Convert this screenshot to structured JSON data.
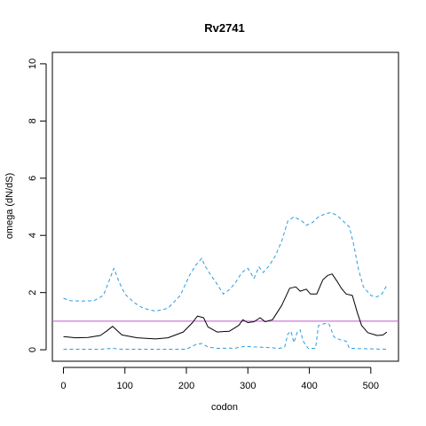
{
  "chart_data": {
    "type": "line",
    "title": "Rv2741",
    "xlabel": "codon",
    "ylabel": "omega (dN/dS)",
    "xlim": [
      -18,
      545
    ],
    "ylim": [
      -0.4,
      10.4
    ],
    "x_ticks": [
      0,
      100,
      200,
      300,
      400,
      500
    ],
    "y_ticks": [
      0,
      2,
      4,
      6,
      8,
      10
    ],
    "grid": false,
    "reference_line": {
      "y": 1,
      "color": "#c05bd0"
    },
    "colors": {
      "median": "#000000",
      "interval": "#2b9be0"
    },
    "series": [
      {
        "style": "solid",
        "color": "#000000",
        "points": [
          [
            0,
            0.46
          ],
          [
            20,
            0.42
          ],
          [
            40,
            0.43
          ],
          [
            60,
            0.5
          ],
          [
            70,
            0.65
          ],
          [
            80,
            0.82
          ],
          [
            85,
            0.72
          ],
          [
            95,
            0.52
          ],
          [
            120,
            0.42
          ],
          [
            150,
            0.38
          ],
          [
            170,
            0.42
          ],
          [
            195,
            0.62
          ],
          [
            210,
            0.95
          ],
          [
            218,
            1.18
          ],
          [
            228,
            1.12
          ],
          [
            235,
            0.8
          ],
          [
            250,
            0.62
          ],
          [
            270,
            0.65
          ],
          [
            285,
            0.85
          ],
          [
            292,
            1.05
          ],
          [
            300,
            0.95
          ],
          [
            310,
            0.98
          ],
          [
            320,
            1.12
          ],
          [
            328,
            0.98
          ],
          [
            340,
            1.05
          ],
          [
            355,
            1.55
          ],
          [
            368,
            2.15
          ],
          [
            378,
            2.2
          ],
          [
            385,
            2.05
          ],
          [
            395,
            2.12
          ],
          [
            402,
            1.95
          ],
          [
            412,
            1.95
          ],
          [
            422,
            2.45
          ],
          [
            430,
            2.6
          ],
          [
            437,
            2.65
          ],
          [
            445,
            2.4
          ],
          [
            452,
            2.15
          ],
          [
            460,
            1.95
          ],
          [
            470,
            1.9
          ],
          [
            478,
            1.3
          ],
          [
            485,
            0.85
          ],
          [
            495,
            0.6
          ],
          [
            510,
            0.5
          ],
          [
            520,
            0.52
          ],
          [
            526,
            0.62
          ]
        ]
      },
      {
        "style": "dashed",
        "color": "#2b9be0",
        "points": [
          [
            0,
            1.8
          ],
          [
            10,
            1.72
          ],
          [
            30,
            1.7
          ],
          [
            50,
            1.72
          ],
          [
            65,
            1.9
          ],
          [
            75,
            2.45
          ],
          [
            82,
            2.85
          ],
          [
            90,
            2.4
          ],
          [
            100,
            1.95
          ],
          [
            115,
            1.65
          ],
          [
            130,
            1.45
          ],
          [
            150,
            1.35
          ],
          [
            170,
            1.45
          ],
          [
            190,
            1.9
          ],
          [
            205,
            2.6
          ],
          [
            215,
            2.95
          ],
          [
            225,
            3.2
          ],
          [
            230,
            2.95
          ],
          [
            240,
            2.6
          ],
          [
            250,
            2.3
          ],
          [
            260,
            1.95
          ],
          [
            270,
            2.1
          ],
          [
            280,
            2.35
          ],
          [
            290,
            2.7
          ],
          [
            300,
            2.85
          ],
          [
            310,
            2.5
          ],
          [
            318,
            2.9
          ],
          [
            325,
            2.7
          ],
          [
            335,
            2.95
          ],
          [
            345,
            3.3
          ],
          [
            355,
            3.8
          ],
          [
            365,
            4.5
          ],
          [
            375,
            4.65
          ],
          [
            388,
            4.5
          ],
          [
            395,
            4.35
          ],
          [
            405,
            4.45
          ],
          [
            415,
            4.65
          ],
          [
            425,
            4.75
          ],
          [
            435,
            4.8
          ],
          [
            445,
            4.7
          ],
          [
            455,
            4.5
          ],
          [
            465,
            4.3
          ],
          [
            472,
            3.7
          ],
          [
            480,
            2.8
          ],
          [
            488,
            2.2
          ],
          [
            500,
            1.9
          ],
          [
            510,
            1.85
          ],
          [
            518,
            1.95
          ],
          [
            526,
            2.25
          ]
        ]
      },
      {
        "style": "dashed",
        "color": "#2b9be0",
        "points": [
          [
            0,
            0.02
          ],
          [
            60,
            0.02
          ],
          [
            80,
            0.05
          ],
          [
            95,
            0.02
          ],
          [
            200,
            0.02
          ],
          [
            215,
            0.18
          ],
          [
            225,
            0.22
          ],
          [
            235,
            0.1
          ],
          [
            250,
            0.05
          ],
          [
            280,
            0.06
          ],
          [
            295,
            0.12
          ],
          [
            310,
            0.1
          ],
          [
            330,
            0.08
          ],
          [
            352,
            0.05
          ],
          [
            360,
            0.1
          ],
          [
            365,
            0.55
          ],
          [
            370,
            0.65
          ],
          [
            375,
            0.25
          ],
          [
            380,
            0.6
          ],
          [
            385,
            0.7
          ],
          [
            390,
            0.3
          ],
          [
            398,
            0.05
          ],
          [
            410,
            0.05
          ],
          [
            415,
            0.85
          ],
          [
            425,
            0.92
          ],
          [
            432,
            0.9
          ],
          [
            440,
            0.45
          ],
          [
            450,
            0.35
          ],
          [
            460,
            0.3
          ],
          [
            465,
            0.05
          ],
          [
            526,
            0.02
          ]
        ]
      }
    ]
  }
}
